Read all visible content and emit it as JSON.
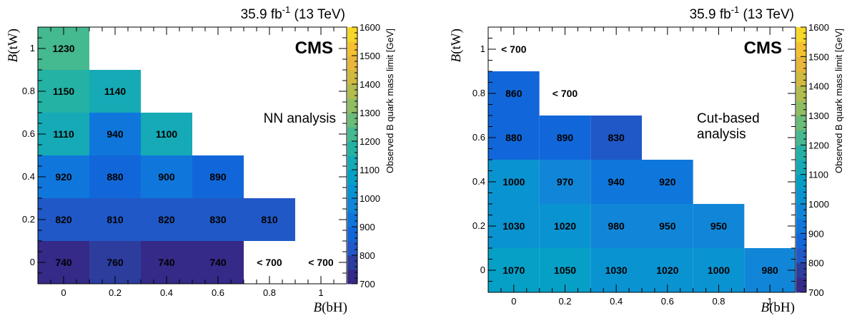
{
  "chart_data": [
    {
      "type": "heatmap",
      "title": "35.9 fb⁻¹ (13 TeV)",
      "experiment_label": "CMS",
      "annotation": [
        "NN analysis"
      ],
      "xlabel": "B(bH)",
      "ylabel": "B(tW)",
      "colorbar_label": "Observed B quark mass limit [GeV]",
      "xlim": [
        -0.1,
        1.1
      ],
      "ylim": [
        -0.1,
        1.1
      ],
      "xticks": [
        "0",
        "0.2",
        "0.4",
        "0.6",
        "0.8",
        "1"
      ],
      "yticks": [
        "0",
        "0.2",
        "0.4",
        "0.6",
        "0.8",
        "1"
      ],
      "zlim": [
        700,
        1600
      ],
      "zticks": [
        "700",
        "800",
        "900",
        "1000",
        "1100",
        "1200",
        "1300",
        "1400",
        "1500",
        "1600"
      ],
      "cells": [
        {
          "x": 0,
          "y": 0,
          "value": 740,
          "label": "740"
        },
        {
          "x": 0.2,
          "y": 0,
          "value": 760,
          "label": "760"
        },
        {
          "x": 0.4,
          "y": 0,
          "value": 740,
          "label": "740"
        },
        {
          "x": 0.6,
          "y": 0,
          "value": 740,
          "label": "740"
        },
        {
          "x": 0.8,
          "y": 0,
          "value": null,
          "label": "< 700"
        },
        {
          "x": 1,
          "y": 0,
          "value": null,
          "label": "< 700"
        },
        {
          "x": 0,
          "y": 0.2,
          "value": 820,
          "label": "820"
        },
        {
          "x": 0.2,
          "y": 0.2,
          "value": 810,
          "label": "810"
        },
        {
          "x": 0.4,
          "y": 0.2,
          "value": 820,
          "label": "820"
        },
        {
          "x": 0.6,
          "y": 0.2,
          "value": 830,
          "label": "830"
        },
        {
          "x": 0.8,
          "y": 0.2,
          "value": 810,
          "label": "810"
        },
        {
          "x": 0,
          "y": 0.4,
          "value": 920,
          "label": "920"
        },
        {
          "x": 0.2,
          "y": 0.4,
          "value": 880,
          "label": "880"
        },
        {
          "x": 0.4,
          "y": 0.4,
          "value": 900,
          "label": "900"
        },
        {
          "x": 0.6,
          "y": 0.4,
          "value": 890,
          "label": "890"
        },
        {
          "x": 0,
          "y": 0.6,
          "value": 1110,
          "label": "1110"
        },
        {
          "x": 0.2,
          "y": 0.6,
          "value": 940,
          "label": "940"
        },
        {
          "x": 0.4,
          "y": 0.6,
          "value": 1100,
          "label": "1100"
        },
        {
          "x": 0,
          "y": 0.8,
          "value": 1150,
          "label": "1150"
        },
        {
          "x": 0.2,
          "y": 0.8,
          "value": 1140,
          "label": "1140"
        },
        {
          "x": 0,
          "y": 1,
          "value": 1230,
          "label": "1230"
        }
      ]
    },
    {
      "type": "heatmap",
      "title": "35.9 fb⁻¹ (13 TeV)",
      "experiment_label": "CMS",
      "annotation": [
        "Cut-based",
        "analysis"
      ],
      "xlabel": "B(bH)",
      "ylabel": "B(tW)",
      "colorbar_label": "Observed B quark mass limit [GeV]",
      "xlim": [
        -0.1,
        1.1
      ],
      "ylim": [
        -0.1,
        1.1
      ],
      "xticks": [
        "0",
        "0.2",
        "0.4",
        "0.6",
        "0.8",
        "1"
      ],
      "yticks": [
        "0",
        "0.2",
        "0.4",
        "0.6",
        "0.8",
        "1"
      ],
      "zlim": [
        700,
        1600
      ],
      "zticks": [
        "700",
        "800",
        "900",
        "1000",
        "1100",
        "1200",
        "1300",
        "1400",
        "1500",
        "1600"
      ],
      "cells": [
        {
          "x": 0,
          "y": 0,
          "value": 1070,
          "label": "1070"
        },
        {
          "x": 0.2,
          "y": 0,
          "value": 1050,
          "label": "1050"
        },
        {
          "x": 0.4,
          "y": 0,
          "value": 1030,
          "label": "1030"
        },
        {
          "x": 0.6,
          "y": 0,
          "value": 1020,
          "label": "1020"
        },
        {
          "x": 0.8,
          "y": 0,
          "value": 1000,
          "label": "1000"
        },
        {
          "x": 1,
          "y": 0,
          "value": 980,
          "label": "980"
        },
        {
          "x": 0,
          "y": 0.2,
          "value": 1030,
          "label": "1030"
        },
        {
          "x": 0.2,
          "y": 0.2,
          "value": 1020,
          "label": "1020"
        },
        {
          "x": 0.4,
          "y": 0.2,
          "value": 980,
          "label": "980"
        },
        {
          "x": 0.6,
          "y": 0.2,
          "value": 950,
          "label": "950"
        },
        {
          "x": 0.8,
          "y": 0.2,
          "value": 950,
          "label": "950"
        },
        {
          "x": 0,
          "y": 0.4,
          "value": 1000,
          "label": "1000"
        },
        {
          "x": 0.2,
          "y": 0.4,
          "value": 970,
          "label": "970"
        },
        {
          "x": 0.4,
          "y": 0.4,
          "value": 940,
          "label": "940"
        },
        {
          "x": 0.6,
          "y": 0.4,
          "value": 920,
          "label": "920"
        },
        {
          "x": 0,
          "y": 0.6,
          "value": 880,
          "label": "880"
        },
        {
          "x": 0.2,
          "y": 0.6,
          "value": 890,
          "label": "890"
        },
        {
          "x": 0.4,
          "y": 0.6,
          "value": 830,
          "label": "830"
        },
        {
          "x": 0,
          "y": 0.8,
          "value": 860,
          "label": "860"
        },
        {
          "x": 0.2,
          "y": 0.8,
          "value": null,
          "label": "< 700"
        },
        {
          "x": 0,
          "y": 1,
          "value": null,
          "label": "< 700"
        }
      ]
    }
  ]
}
